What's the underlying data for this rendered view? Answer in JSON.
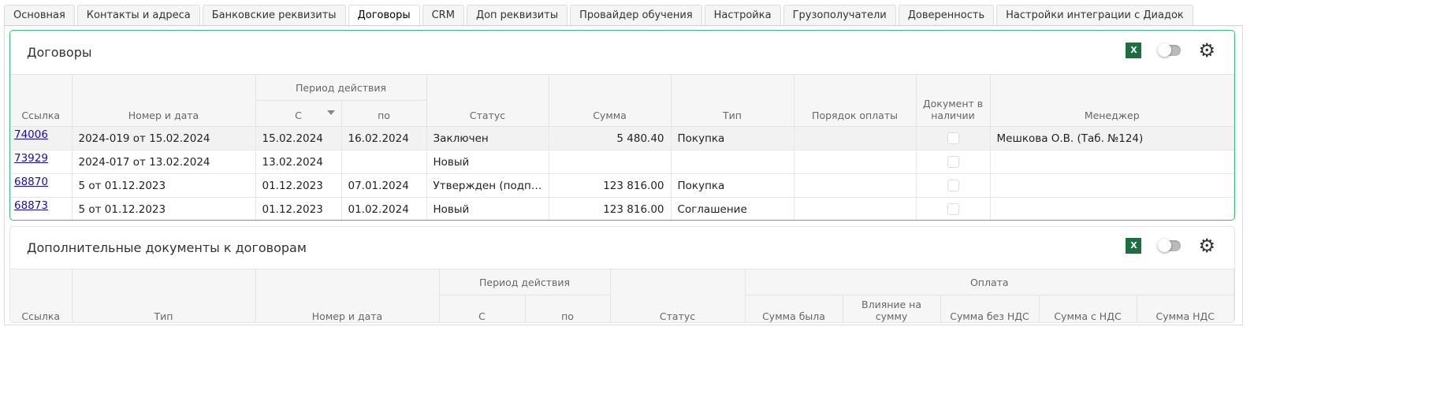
{
  "tabs": [
    {
      "label": "Основная",
      "active": false
    },
    {
      "label": "Контакты и адреса",
      "active": false
    },
    {
      "label": "Банковские реквизиты",
      "active": false
    },
    {
      "label": "Договоры",
      "active": true
    },
    {
      "label": "CRM",
      "active": false
    },
    {
      "label": "Доп реквизиты",
      "active": false
    },
    {
      "label": "Провайдер обучения",
      "active": false
    },
    {
      "label": "Настройка",
      "active": false
    },
    {
      "label": "Грузополучатели",
      "active": false
    },
    {
      "label": "Доверенность",
      "active": false
    },
    {
      "label": "Настройки интеграции с Диадок",
      "active": false
    }
  ],
  "contracts": {
    "title": "Договоры",
    "excel_label": "X",
    "toggle_on": false,
    "headers": {
      "link": "Ссылка",
      "number_date": "Номер и дата",
      "period": "Период действия",
      "from": "С",
      "to": "по",
      "status": "Статус",
      "sum": "Сумма",
      "type": "Тип",
      "payment_order": "Порядок оплаты",
      "doc_available": "Документ в наличии",
      "manager": "Менеджер"
    },
    "rows": [
      {
        "link": "74006",
        "number_date": "2024-019 от 15.02.2024",
        "from": "15.02.2024",
        "to": "16.02.2024",
        "status": "Заключен",
        "sum": "5 480.40",
        "type": "Покупка",
        "payment_order": "",
        "doc_available": false,
        "manager": "Мешкова О.В. (Таб. №124)"
      },
      {
        "link": "73929",
        "number_date": "2024-017 от 13.02.2024",
        "from": "13.02.2024",
        "to": "",
        "status": "Новый",
        "sum": "",
        "type": "",
        "payment_order": "",
        "doc_available": false,
        "manager": ""
      },
      {
        "link": "68870",
        "number_date": "5 от 01.12.2023",
        "from": "01.12.2023",
        "to": "07.01.2024",
        "status": "Утвержден (подписан)",
        "sum": "123 816.00",
        "type": "Покупка",
        "payment_order": "",
        "doc_available": false,
        "manager": ""
      },
      {
        "link": "68873",
        "number_date": "5 от 01.12.2023",
        "from": "01.12.2023",
        "to": "01.02.2024",
        "status": "Новый",
        "sum": "123 816.00",
        "type": "Соглашение",
        "payment_order": "",
        "doc_available": false,
        "manager": ""
      }
    ]
  },
  "additional": {
    "title": "Дополнительные документы к договорам",
    "excel_label": "X",
    "toggle_on": false,
    "headers": {
      "link": "Ссылка",
      "type": "Тип",
      "number_date": "Номер и дата",
      "period": "Период действия",
      "from": "С",
      "to": "по",
      "status": "Статус",
      "payment": "Оплата",
      "sum_was": "Сумма была",
      "impact": "Влияние на сумму",
      "sum_no_vat": "Сумма без НДС",
      "sum_with_vat": "Сумма с НДС",
      "vat_sum": "Сумма НДС"
    }
  }
}
